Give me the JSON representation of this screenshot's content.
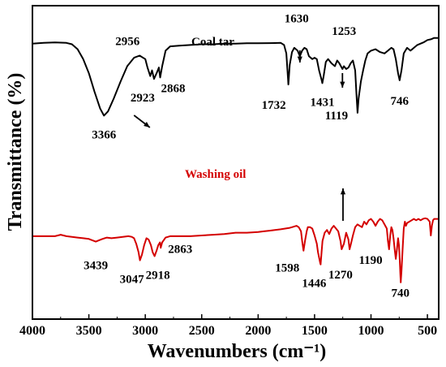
{
  "chart_data": {
    "type": "line",
    "title": "",
    "xlabel": "Wavenumbers (cm⁻¹)",
    "ylabel": "Transmittance (%)",
    "xlim": [
      4000,
      400
    ],
    "x_reversed": true,
    "y_ticks_shown": false,
    "grid": false,
    "xticks": [
      "4000",
      "3500",
      "3000",
      "2500",
      "2000",
      "1500",
      "1000",
      "500"
    ],
    "xtick_values": [
      4000,
      3500,
      3000,
      2500,
      2000,
      1500,
      1000,
      500
    ],
    "ylim": [
      0,
      100
    ],
    "series": [
      {
        "name": "Coal tar",
        "color": "#000000",
        "x": [
          4000,
          3900,
          3800,
          3700,
          3650,
          3600,
          3550,
          3500,
          3450,
          3400,
          3366,
          3330,
          3280,
          3220,
          3160,
          3100,
          3050,
          3000,
          2980,
          2956,
          2940,
          2923,
          2900,
          2880,
          2868,
          2850,
          2820,
          2780,
          2700,
          2600,
          2500,
          2400,
          2300,
          2200,
          2100,
          2000,
          1900,
          1850,
          1800,
          1770,
          1750,
          1740,
          1732,
          1720,
          1700,
          1680,
          1650,
          1630,
          1610,
          1590,
          1570,
          1550,
          1520,
          1500,
          1480,
          1460,
          1440,
          1431,
          1420,
          1400,
          1380,
          1350,
          1320,
          1300,
          1280,
          1260,
          1253,
          1240,
          1220,
          1200,
          1180,
          1160,
          1140,
          1130,
          1119,
          1110,
          1090,
          1070,
          1050,
          1030,
          1000,
          960,
          920,
          880,
          850,
          820,
          800,
          780,
          760,
          746,
          730,
          710,
          680,
          650,
          620,
          590,
          560,
          530,
          500,
          470,
          440,
          400
        ],
        "y": [
          91,
          91.5,
          91.8,
          91.5,
          90.5,
          87,
          80,
          70,
          57,
          45,
          40,
          43,
          52,
          64,
          75,
          81,
          82.5,
          80,
          74,
          68,
          72,
          66,
          70,
          74,
          67,
          75,
          86,
          89,
          89.5,
          90,
          90.5,
          90.5,
          91,
          91,
          91.2,
          91.2,
          91.3,
          91.4,
          91.5,
          90,
          84,
          72,
          62,
          76,
          85,
          88,
          86,
          82,
          86,
          88,
          87,
          82,
          80,
          81,
          80,
          72,
          66,
          63,
          68,
          78,
          80,
          77,
          75,
          79,
          77,
          74,
          73,
          75,
          73,
          74,
          77,
          79,
          72,
          57,
          42,
          52,
          64,
          72,
          79,
          84,
          86,
          87,
          85,
          84,
          86,
          88,
          87,
          80,
          70,
          65,
          72,
          84,
          88,
          86,
          88,
          90,
          91,
          92,
          93.5,
          94,
          95,
          95
        ]
      },
      {
        "name": "Washing oil",
        "color": "#d40000",
        "x": [
          4000,
          3900,
          3800,
          3750,
          3700,
          3600,
          3550,
          3500,
          3470,
          3439,
          3410,
          3380,
          3340,
          3300,
          3250,
          3200,
          3150,
          3120,
          3100,
          3080,
          3060,
          3047,
          3030,
          3010,
          2990,
          2970,
          2950,
          2935,
          2918,
          2900,
          2885,
          2870,
          2863,
          2850,
          2820,
          2780,
          2700,
          2600,
          2500,
          2400,
          2300,
          2200,
          2100,
          2000,
          1950,
          1900,
          1850,
          1800,
          1760,
          1720,
          1700,
          1680,
          1660,
          1640,
          1620,
          1610,
          1598,
          1585,
          1570,
          1560,
          1540,
          1520,
          1500,
          1480,
          1470,
          1460,
          1450,
          1446,
          1440,
          1430,
          1410,
          1390,
          1370,
          1350,
          1330,
          1310,
          1290,
          1270,
          1260,
          1240,
          1220,
          1200,
          1190,
          1180,
          1160,
          1140,
          1120,
          1100,
          1080,
          1060,
          1040,
          1020,
          1000,
          980,
          960,
          940,
          920,
          900,
          880,
          860,
          850,
          840,
          830,
          820,
          810,
          800,
          790,
          780,
          770,
          760,
          752,
          745,
          740,
          736,
          730,
          720,
          710,
          700,
          690,
          680,
          660,
          640,
          620,
          600,
          580,
          560,
          540,
          520,
          500,
          480,
          470,
          460,
          450,
          440,
          420,
          400
        ],
        "y": [
          39.5,
          39.5,
          39.5,
          40.5,
          39.5,
          38.5,
          38,
          37.5,
          36.5,
          35.5,
          36.5,
          37.5,
          38.5,
          38,
          38.5,
          39,
          39.5,
          39,
          38,
          34,
          28,
          22,
          26,
          33,
          38,
          37,
          33,
          28,
          25,
          29,
          33,
          35,
          31,
          35,
          38.5,
          39.5,
          39.5,
          39.5,
          40,
          40.5,
          41,
          42,
          42,
          42.5,
          43,
          43.5,
          44,
          44.5,
          45,
          45.5,
          46,
          46.5,
          47,
          46,
          43,
          36,
          29,
          36,
          43,
          46,
          46,
          45,
          40,
          34,
          28,
          24,
          20,
          19,
          26,
          36,
          42,
          44,
          41,
          45,
          47,
          45,
          43,
          36,
          30,
          34,
          42,
          37,
          30,
          33,
          40,
          46,
          48,
          47,
          46,
          50,
          48,
          51,
          52,
          50,
          47,
          50,
          52,
          51,
          48,
          45,
          36,
          30,
          40,
          46,
          44,
          38,
          30,
          23,
          30,
          38,
          33,
          22,
          12,
          6,
          14,
          30,
          45,
          50,
          47,
          49,
          50,
          51,
          52,
          51,
          52,
          51,
          52,
          52.5,
          52,
          50,
          40,
          47,
          51,
          52,
          52,
          52
        ]
      }
    ],
    "series_labels": [
      "Coal tar",
      "Washing oil"
    ],
    "annotations": [
      {
        "text": "3366",
        "series": 0,
        "x": 3366
      },
      {
        "text": "2956",
        "series": 0,
        "x": 2956
      },
      {
        "text": "2923",
        "series": 0,
        "x": 2923
      },
      {
        "text": "2868",
        "series": 0,
        "x": 2868
      },
      {
        "text": "1732",
        "series": 0,
        "x": 1732
      },
      {
        "text": "1630",
        "series": 0,
        "x": 1630
      },
      {
        "text": "1431",
        "series": 0,
        "x": 1431
      },
      {
        "text": "1253",
        "series": 0,
        "x": 1253
      },
      {
        "text": "1119",
        "series": 0,
        "x": 1119
      },
      {
        "text": "746",
        "series": 0,
        "x": 746
      },
      {
        "text": "3439",
        "series": 1,
        "x": 3439
      },
      {
        "text": "3047",
        "series": 1,
        "x": 3047
      },
      {
        "text": "2918",
        "series": 1,
        "x": 2918
      },
      {
        "text": "2863",
        "series": 1,
        "x": 2863
      },
      {
        "text": "1598",
        "series": 1,
        "x": 1598
      },
      {
        "text": "1446",
        "series": 1,
        "x": 1446
      },
      {
        "text": "1270",
        "series": 1,
        "x": 1270
      },
      {
        "text": "1190",
        "series": 1,
        "x": 1190
      },
      {
        "text": "740",
        "series": 1,
        "x": 740
      }
    ]
  }
}
